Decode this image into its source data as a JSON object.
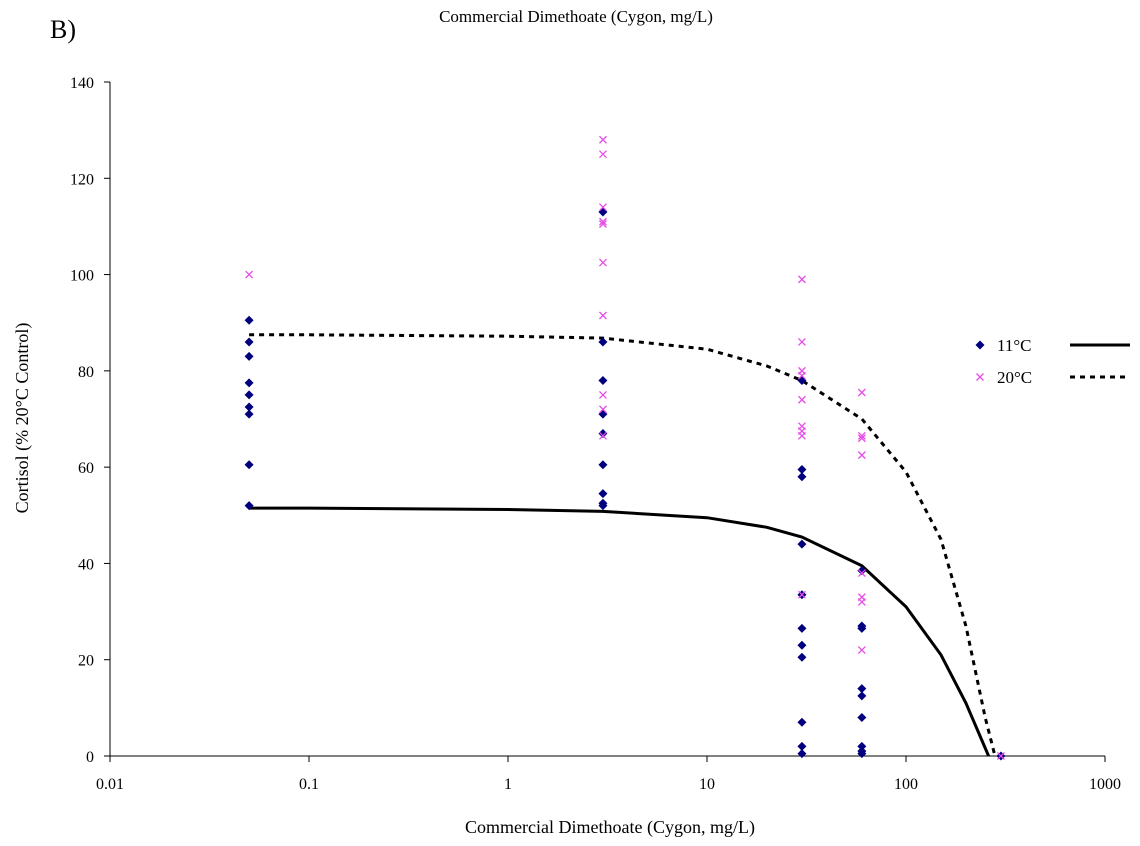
{
  "panel_label": "B)",
  "chart_data": {
    "type": "scatter",
    "title": "Commercial Dimethoate (Cygon, mg/L)",
    "xlabel": "Commercial Dimethoate (Cygon, mg/L)",
    "ylabel": "Cortisol (% 20°C Control)",
    "xscale": "log",
    "xlim": [
      0.01,
      1000
    ],
    "ylim": [
      0,
      140
    ],
    "xticks": [
      "0.01",
      "0.1",
      "1",
      "10",
      "100",
      "1000"
    ],
    "yticks": [
      "0",
      "20",
      "40",
      "60",
      "80",
      "100",
      "120",
      "140"
    ],
    "grid": false,
    "legend_position": "right",
    "series": [
      {
        "name": "11°C",
        "marker": "diamond",
        "color": "#00007F",
        "points": [
          [
            0.05,
            90.5
          ],
          [
            0.05,
            86
          ],
          [
            0.05,
            83
          ],
          [
            0.05,
            77.5
          ],
          [
            0.05,
            75
          ],
          [
            0.05,
            72.5
          ],
          [
            0.05,
            71
          ],
          [
            0.05,
            60.5
          ],
          [
            0.05,
            52
          ],
          [
            3,
            113
          ],
          [
            3,
            86
          ],
          [
            3,
            78
          ],
          [
            3,
            71
          ],
          [
            3,
            67
          ],
          [
            3,
            60.5
          ],
          [
            3,
            54.5
          ],
          [
            3,
            52.5
          ],
          [
            3,
            52
          ],
          [
            30,
            78
          ],
          [
            30,
            59.5
          ],
          [
            30,
            58
          ],
          [
            30,
            44
          ],
          [
            30,
            33.5
          ],
          [
            30,
            26.5
          ],
          [
            30,
            23
          ],
          [
            30,
            20.5
          ],
          [
            30,
            7
          ],
          [
            30,
            2
          ],
          [
            30,
            0.5
          ],
          [
            60,
            38.5
          ],
          [
            60,
            27
          ],
          [
            60,
            26.5
          ],
          [
            60,
            14
          ],
          [
            60,
            12.5
          ],
          [
            60,
            8
          ],
          [
            60,
            2
          ],
          [
            60,
            1
          ],
          [
            60,
            0.5
          ],
          [
            300,
            0
          ]
        ]
      },
      {
        "name": "20°C",
        "marker": "x",
        "color": "#E64DE6",
        "points": [
          [
            0.05,
            100
          ],
          [
            3,
            128
          ],
          [
            3,
            125
          ],
          [
            3,
            114
          ],
          [
            3,
            111
          ],
          [
            3,
            110.5
          ],
          [
            3,
            102.5
          ],
          [
            3,
            91.5
          ],
          [
            3,
            75
          ],
          [
            3,
            72
          ],
          [
            3,
            66.5
          ],
          [
            30,
            99
          ],
          [
            30,
            86
          ],
          [
            30,
            80
          ],
          [
            30,
            79
          ],
          [
            30,
            74
          ],
          [
            30,
            68.5
          ],
          [
            30,
            67.5
          ],
          [
            30,
            66.5
          ],
          [
            30,
            33.5
          ],
          [
            60,
            75.5
          ],
          [
            60,
            66.5
          ],
          [
            60,
            66
          ],
          [
            60,
            62.5
          ],
          [
            60,
            38
          ],
          [
            60,
            33
          ],
          [
            60,
            32
          ],
          [
            60,
            22
          ],
          [
            300,
            0
          ]
        ]
      }
    ],
    "fit_curves": [
      {
        "name": "11°C",
        "style": "solid",
        "color": "#000000",
        "points": [
          [
            0.05,
            51.5
          ],
          [
            0.1,
            51.5
          ],
          [
            1,
            51.2
          ],
          [
            3,
            50.8
          ],
          [
            10,
            49.5
          ],
          [
            20,
            47.5
          ],
          [
            30,
            45.5
          ],
          [
            60,
            39.5
          ],
          [
            100,
            31
          ],
          [
            150,
            21
          ],
          [
            200,
            11
          ],
          [
            260,
            0
          ]
        ]
      },
      {
        "name": "20°C",
        "style": "dotted",
        "color": "#000000",
        "points": [
          [
            0.05,
            87.5
          ],
          [
            0.1,
            87.5
          ],
          [
            1,
            87.2
          ],
          [
            3,
            86.8
          ],
          [
            10,
            84.5
          ],
          [
            20,
            81
          ],
          [
            30,
            78
          ],
          [
            60,
            70
          ],
          [
            100,
            59
          ],
          [
            150,
            45
          ],
          [
            200,
            27
          ],
          [
            250,
            8
          ],
          [
            280,
            0
          ]
        ]
      }
    ]
  }
}
